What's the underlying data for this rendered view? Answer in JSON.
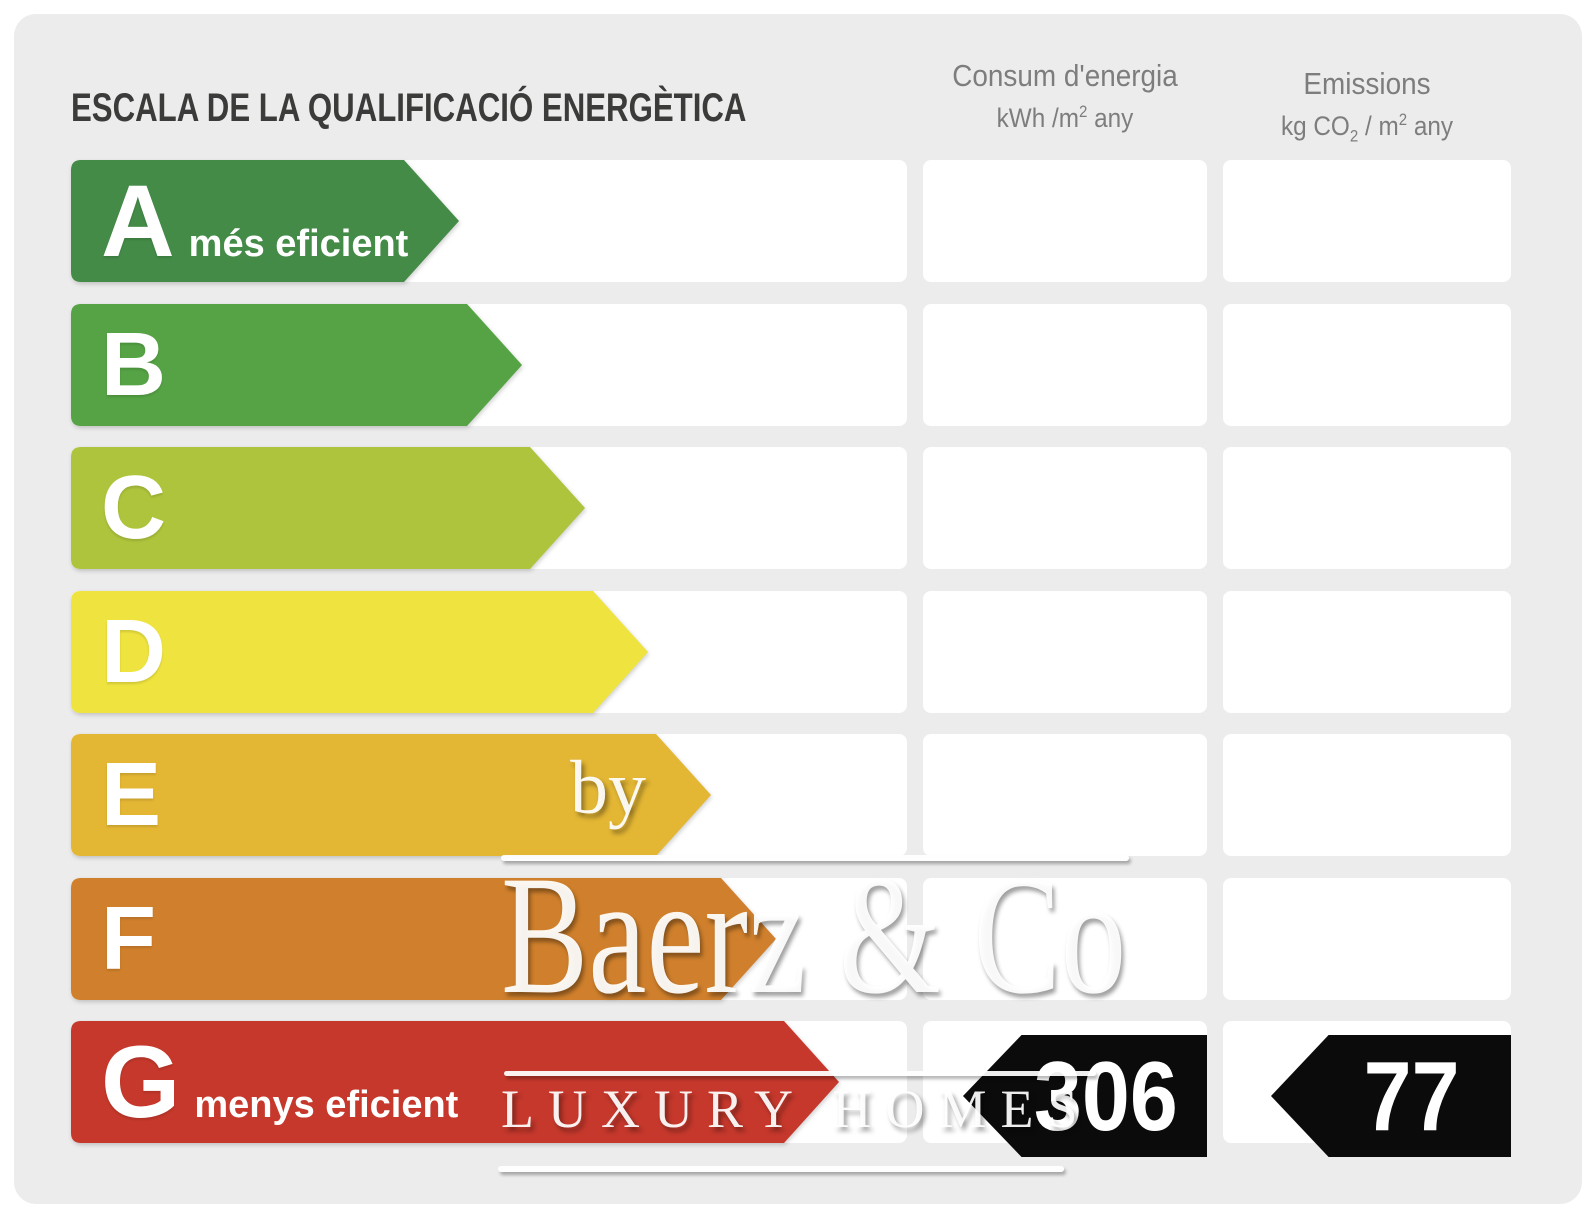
{
  "page": {
    "background": "#ffffff",
    "card_background": "#ececec"
  },
  "title": "ESCALA DE LA QUALIFICACIÓ ENERGÈTICA",
  "headers": {
    "consumption": {
      "title": "Consum d'energia",
      "unit_pre": "kWh /m",
      "unit_sup": "2",
      "unit_post": " any"
    },
    "emissions": {
      "title": "Emissions",
      "unit_pre": "kg CO",
      "unit_sub": "2",
      "unit_mid": " / m",
      "unit_sup": "2",
      "unit_post": " any"
    }
  },
  "scale": {
    "rows": [
      {
        "grade": "A",
        "qualifier": "més eficient",
        "color": "#448B48",
        "arrow_width": 388
      },
      {
        "grade": "B",
        "qualifier": "",
        "color": "#55A344",
        "arrow_width": 451
      },
      {
        "grade": "C",
        "qualifier": "",
        "color": "#AEC43C",
        "arrow_width": 514
      },
      {
        "grade": "D",
        "qualifier": "",
        "color": "#EEE33F",
        "arrow_width": 577
      },
      {
        "grade": "E",
        "qualifier": "",
        "color": "#E3B634",
        "arrow_width": 640
      },
      {
        "grade": "F",
        "qualifier": "",
        "color": "#D0802C",
        "arrow_width": 705
      },
      {
        "grade": "G",
        "qualifier": "menys eficient",
        "color": "#C6382C",
        "arrow_width": 768
      }
    ]
  },
  "values": {
    "consumption": "306",
    "emissions": "77"
  },
  "badge_color": "#0b0b0b",
  "watermark": {
    "by": "by",
    "brand": "Baerz & Co",
    "tagline": "LUXURY HOMES"
  },
  "chart_data": {
    "type": "bar",
    "title": "ESCALA DE LA QUALIFICACIÓ ENERGÈTICA",
    "orientation": "horizontal",
    "categories": [
      "A",
      "B",
      "C",
      "D",
      "E",
      "F",
      "G"
    ],
    "values": [
      388,
      451,
      514,
      577,
      640,
      705,
      768
    ],
    "value_meaning": "relative arrow length of each efficiency grade (pixels)",
    "colors": [
      "#448B48",
      "#55A344",
      "#AEC43C",
      "#EEE33F",
      "#E3B634",
      "#D0802C",
      "#C6382C"
    ],
    "annotations": {
      "A": "més eficient",
      "G": "menys eficient"
    },
    "columns": [
      {
        "label": "Consum d'energia",
        "unit": "kWh /m2 any",
        "value": 306,
        "row": "G"
      },
      {
        "label": "Emissions",
        "unit": "kg CO2 / m2 any",
        "value": 77,
        "row": "G"
      }
    ],
    "legend": "none",
    "grid": "off"
  }
}
